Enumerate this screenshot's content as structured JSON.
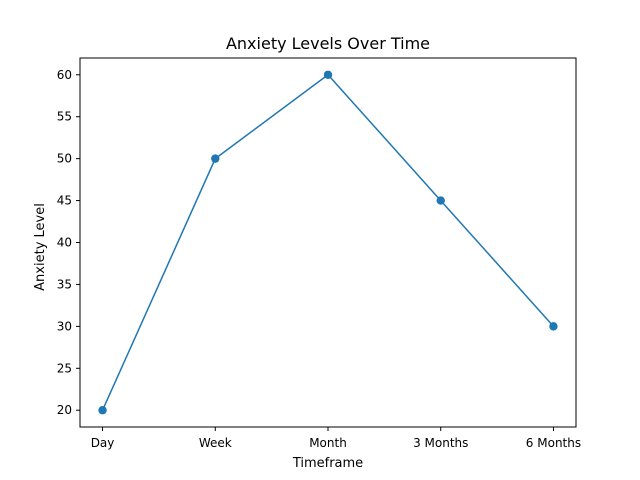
{
  "chart_data": {
    "type": "line",
    "title": "Anxiety Levels Over Time",
    "xlabel": "Timeframe",
    "ylabel": "Anxiety Level",
    "categories": [
      "Day",
      "Week",
      "Month",
      "3 Months",
      "6 Months"
    ],
    "series": [
      {
        "values": [
          20,
          50,
          60,
          45,
          30
        ],
        "color": "#1f77b4",
        "marker": "circle"
      }
    ],
    "ylim": [
      18,
      62
    ],
    "yticks": [
      20,
      25,
      30,
      35,
      40,
      45,
      50,
      55,
      60
    ],
    "grid": false,
    "legend": "none"
  }
}
